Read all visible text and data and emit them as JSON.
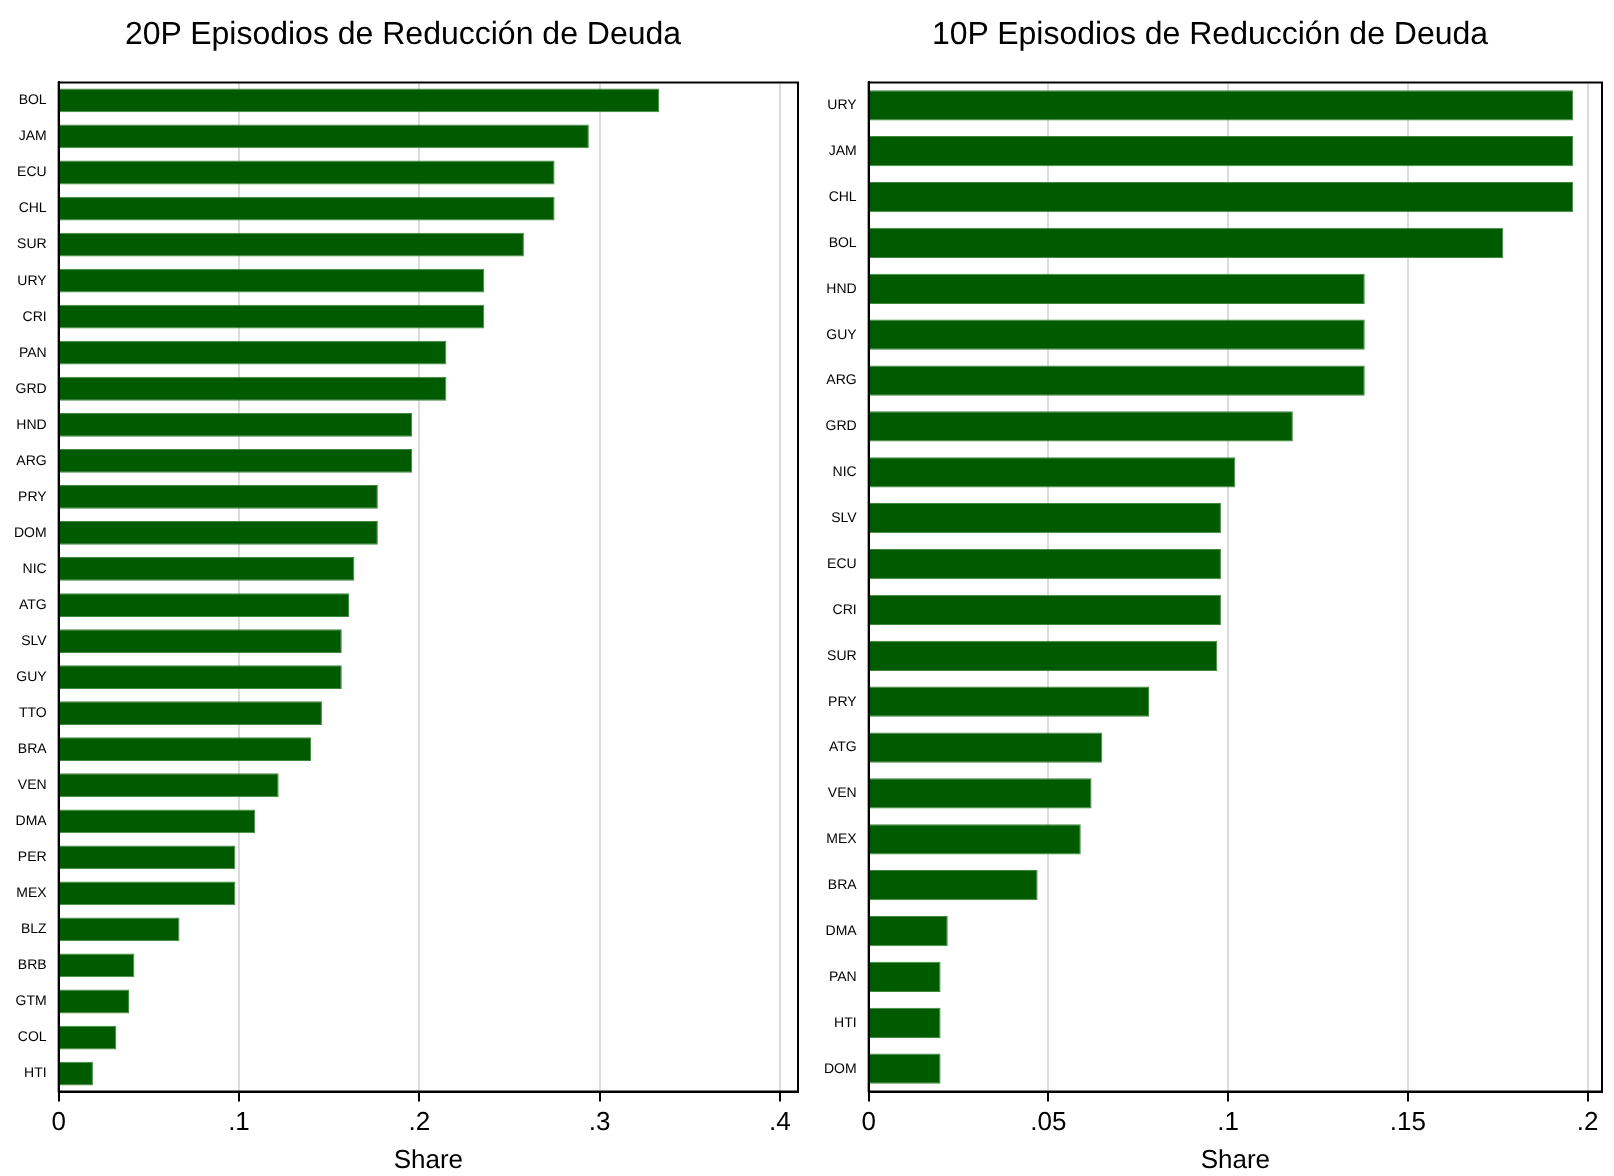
{
  "chart_data": [
    {
      "type": "bar",
      "orientation": "horizontal",
      "title": "20P Episodios de Reducción de Deuda",
      "xlabel": "Share",
      "color": "#005a00",
      "grid": "x",
      "categories": [
        "BOL",
        "JAM",
        "ECU",
        "CHL",
        "SUR",
        "URY",
        "CRI",
        "PAN",
        "GRD",
        "HND",
        "ARG",
        "PRY",
        "DOM",
        "NIC",
        "ATG",
        "SLV",
        "GUY",
        "TTO",
        "BRA",
        "VEN",
        "DMA",
        "PER",
        "MEX",
        "BLZ",
        "BRB",
        "GTM",
        "COL",
        "HTI"
      ],
      "values": [
        0.333,
        0.294,
        0.275,
        0.275,
        0.258,
        0.236,
        0.236,
        0.215,
        0.215,
        0.196,
        0.196,
        0.177,
        0.177,
        0.164,
        0.161,
        0.157,
        0.157,
        0.146,
        0.14,
        0.122,
        0.109,
        0.098,
        0.098,
        0.067,
        0.042,
        0.039,
        0.032,
        0.019
      ],
      "xlim": [
        0,
        0.41
      ],
      "xticks": [
        0,
        {
          "value": 0.1,
          "label": ".1"
        },
        {
          "value": 0.2,
          "label": ".2"
        },
        {
          "value": 0.3,
          "label": ".3"
        },
        {
          "value": 0.4,
          "label": ".4"
        }
      ]
    },
    {
      "type": "bar",
      "orientation": "horizontal",
      "title": "10P Episodios de Reducción de Deuda",
      "xlabel": "Share",
      "color": "#005a00",
      "grid": "x",
      "categories": [
        "URY",
        "JAM",
        "CHL",
        "BOL",
        "HND",
        "GUY",
        "ARG",
        "GRD",
        "NIC",
        "SLV",
        "ECU",
        "CRI",
        "SUR",
        "PRY",
        "ATG",
        "VEN",
        "MEX",
        "BRA",
        "DMA",
        "PAN",
        "HTI",
        "DOM"
      ],
      "values": [
        0.196,
        0.196,
        0.196,
        0.1765,
        0.138,
        0.138,
        0.138,
        0.118,
        0.102,
        0.098,
        0.098,
        0.098,
        0.097,
        0.078,
        0.065,
        0.062,
        0.059,
        0.047,
        0.022,
        0.02,
        0.02,
        0.02
      ],
      "xlim": [
        0,
        0.204
      ],
      "xticks": [
        0,
        {
          "value": 0.05,
          "label": ".05"
        },
        {
          "value": 0.1,
          "label": ".1"
        },
        {
          "value": 0.15,
          "label": ".15"
        },
        {
          "value": 0.2,
          "label": ".2"
        }
      ]
    }
  ]
}
